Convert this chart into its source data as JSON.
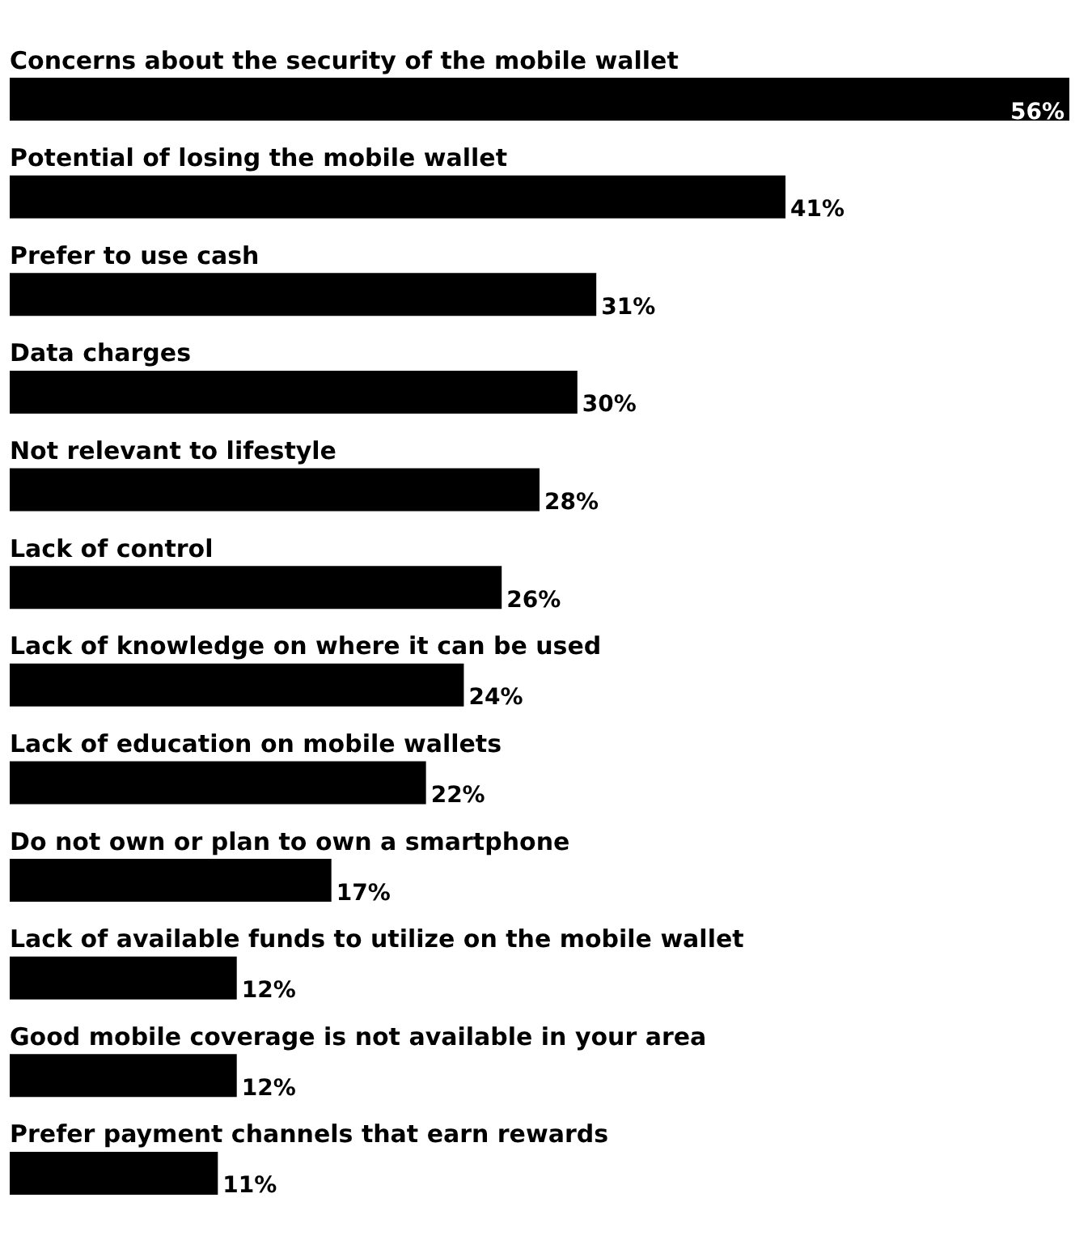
{
  "chart_data": {
    "type": "bar",
    "orientation": "horizontal",
    "categories": [
      "Concerns about the security of the mobile wallet",
      "Potential of losing the mobile wallet",
      "Prefer to use cash",
      "Data charges",
      "Not relevant to lifestyle",
      "Lack of control",
      "Lack of knowledge on where it can be used",
      "Lack of education on mobile wallets",
      "Do not own or plan to own a smartphone",
      "Lack of available funds to utilize on the mobile wallet",
      "Good mobile coverage is not available in your area",
      "Prefer payment channels that earn rewards"
    ],
    "values": [
      56,
      41,
      31,
      30,
      28,
      26,
      24,
      22,
      17,
      12,
      12,
      11
    ],
    "value_labels": [
      "56%",
      "41%",
      "31%",
      "30%",
      "28%",
      "26%",
      "24%",
      "22%",
      "17%",
      "12%",
      "12%",
      "11%"
    ],
    "color": "#000000"
  }
}
